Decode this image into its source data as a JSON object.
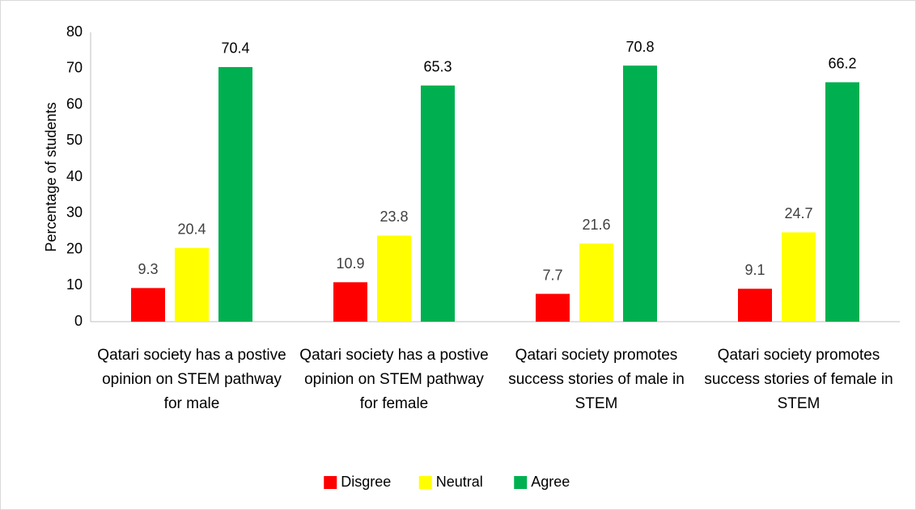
{
  "chart_data": {
    "type": "bar",
    "y_label": "Percentage of students",
    "categories": [
      "Qatari society has a postive opinion on STEM pathway for male",
      "Qatari society has a postive opinion on STEM pathway for female",
      "Qatari society promotes success stories of male in STEM",
      "Qatari society promotes success stories of female in STEM"
    ],
    "series": [
      {
        "name": "Disgree",
        "color": "#ff0000",
        "values": [
          9.3,
          10.9,
          7.7,
          9.1
        ]
      },
      {
        "name": "Neutral",
        "color": "#ffff00",
        "values": [
          20.4,
          23.8,
          21.6,
          24.7
        ]
      },
      {
        "name": "Agree",
        "color": "#00b050",
        "values": [
          70.4,
          65.3,
          70.8,
          66.2
        ]
      }
    ],
    "ylim": [
      0,
      80
    ],
    "yticks": [
      0,
      10,
      20,
      30,
      40,
      50,
      60,
      70,
      80
    ],
    "grid": false,
    "legend": "bottom"
  }
}
